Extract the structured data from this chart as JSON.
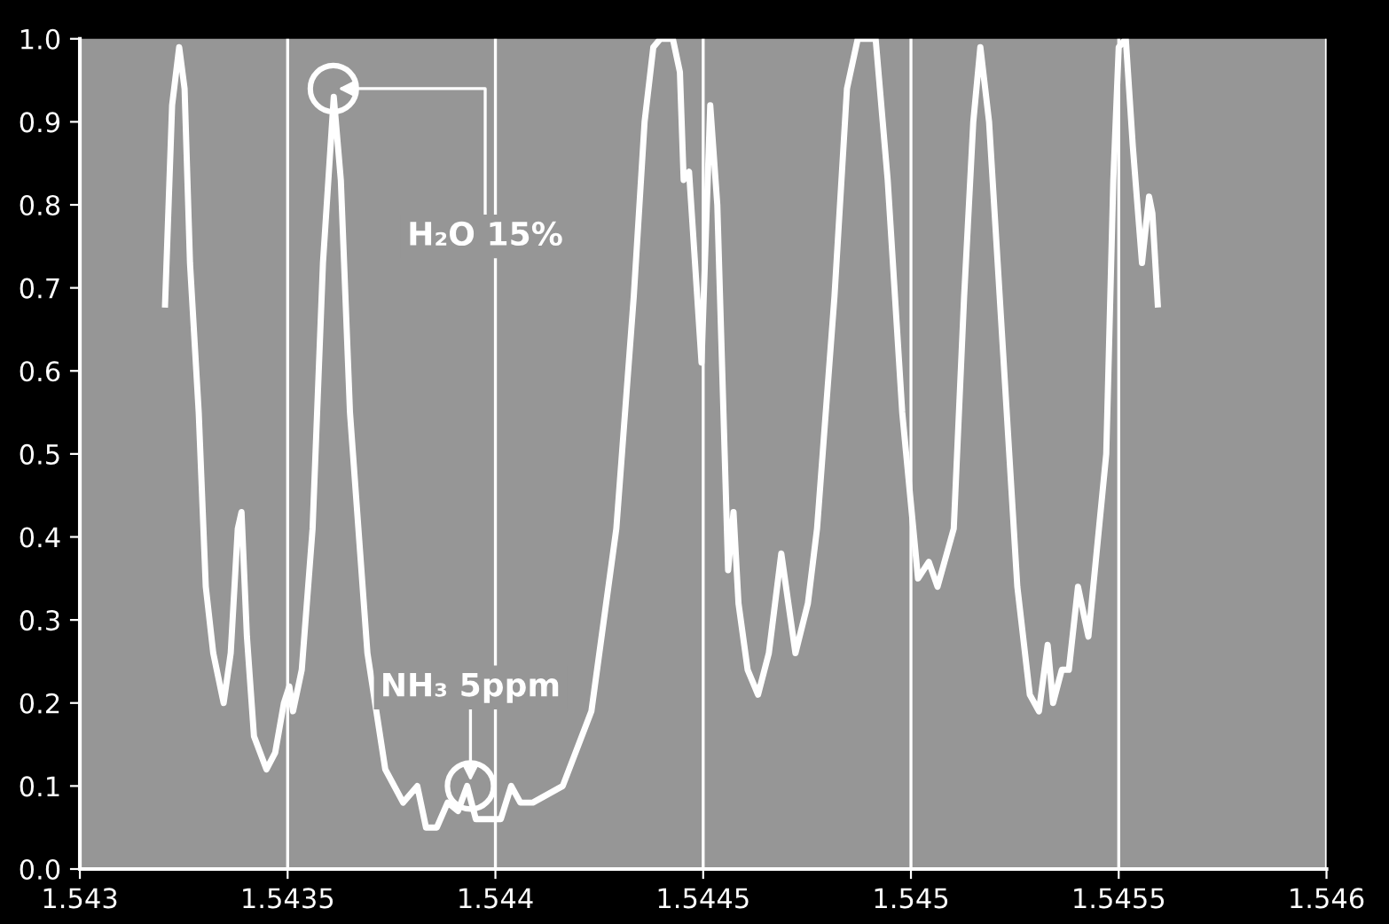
{
  "chart_data": {
    "type": "line",
    "x": [
      1.543205,
      1.543222,
      1.543239,
      1.543252,
      1.543265,
      1.543286,
      1.543303,
      1.543321,
      1.543346,
      1.543363,
      1.54338,
      1.543389,
      1.543402,
      1.543419,
      1.543449,
      1.54347,
      1.543491,
      1.543504,
      1.543513,
      1.543534,
      1.54356,
      1.543585,
      1.543611,
      1.543628,
      1.54365,
      1.543692,
      1.543735,
      1.543778,
      1.543812,
      1.543833,
      1.543859,
      1.543885,
      1.54391,
      1.543932,
      1.543953,
      1.54397,
      1.544013,
      1.544038,
      1.54406,
      1.54409,
      1.544162,
      1.544231,
      1.544291,
      1.544333,
      1.544359,
      1.54438,
      1.544397,
      1.544427,
      1.544444,
      1.544453,
      1.544466,
      1.544496,
      1.544517,
      1.544534,
      1.54456,
      1.544573,
      1.544585,
      1.544607,
      1.544632,
      1.544658,
      1.544688,
      1.544722,
      1.544752,
      1.544774,
      1.544816,
      1.544846,
      1.544872,
      1.544915,
      1.544944,
      1.544979,
      1.545017,
      1.545043,
      1.545064,
      1.545103,
      1.545128,
      1.54515,
      1.545167,
      1.545188,
      1.545222,
      1.545256,
      1.545286,
      1.545308,
      1.545329,
      1.545342,
      1.545363,
      1.54538,
      1.545402,
      1.545427,
      1.54547,
      1.545487,
      1.5455,
      1.545517,
      1.545534,
      1.545556,
      1.545573,
      1.545581,
      1.545594
    ],
    "series": [
      {
        "color": "#ffffff",
        "values": [
          0.68,
          0.92,
          0.99,
          0.94,
          0.73,
          0.55,
          0.34,
          0.26,
          0.2,
          0.26,
          0.41,
          0.43,
          0.28,
          0.16,
          0.12,
          0.14,
          0.2,
          0.22,
          0.19,
          0.24,
          0.41,
          0.73,
          0.93,
          0.83,
          0.55,
          0.26,
          0.12,
          0.08,
          0.1,
          0.05,
          0.05,
          0.08,
          0.07,
          0.1,
          0.06,
          0.06,
          0.06,
          0.1,
          0.08,
          0.08,
          0.1,
          0.19,
          0.41,
          0.69,
          0.9,
          0.99,
          1.0,
          1.0,
          0.96,
          0.83,
          0.84,
          0.61,
          0.92,
          0.8,
          0.36,
          0.43,
          0.32,
          0.24,
          0.21,
          0.26,
          0.38,
          0.26,
          0.32,
          0.41,
          0.69,
          0.94,
          1.0,
          1.0,
          0.83,
          0.55,
          0.35,
          0.37,
          0.34,
          0.41,
          0.69,
          0.9,
          0.99,
          0.9,
          0.62,
          0.34,
          0.21,
          0.19,
          0.27,
          0.2,
          0.24,
          0.24,
          0.34,
          0.28,
          0.5,
          0.83,
          0.99,
          1.0,
          0.87,
          0.73,
          0.81,
          0.79,
          0.68
        ]
      }
    ],
    "xlim": [
      1.543,
      1.546
    ],
    "xticks": [
      1.543,
      1.5435,
      1.544,
      1.5445,
      1.545,
      1.5455,
      1.546
    ],
    "ylim": [
      0,
      1.0
    ],
    "yticks": [
      {
        "value": 0,
        "label": "0.0"
      },
      0.1,
      0.2,
      0.3,
      0.4,
      0.5,
      0.6,
      0.7,
      0.8,
      0.9,
      {
        "value": 1.0,
        "label": "1.0"
      }
    ],
    "grid": "x",
    "marker": "none",
    "line_style": "solid",
    "annotations": [
      {
        "text": "H₂O 15%",
        "x": 1.54361,
        "y": 0.94
      },
      {
        "text": "NH₃ 5ppm",
        "x": 1.54394,
        "y": 0.1
      }
    ]
  }
}
